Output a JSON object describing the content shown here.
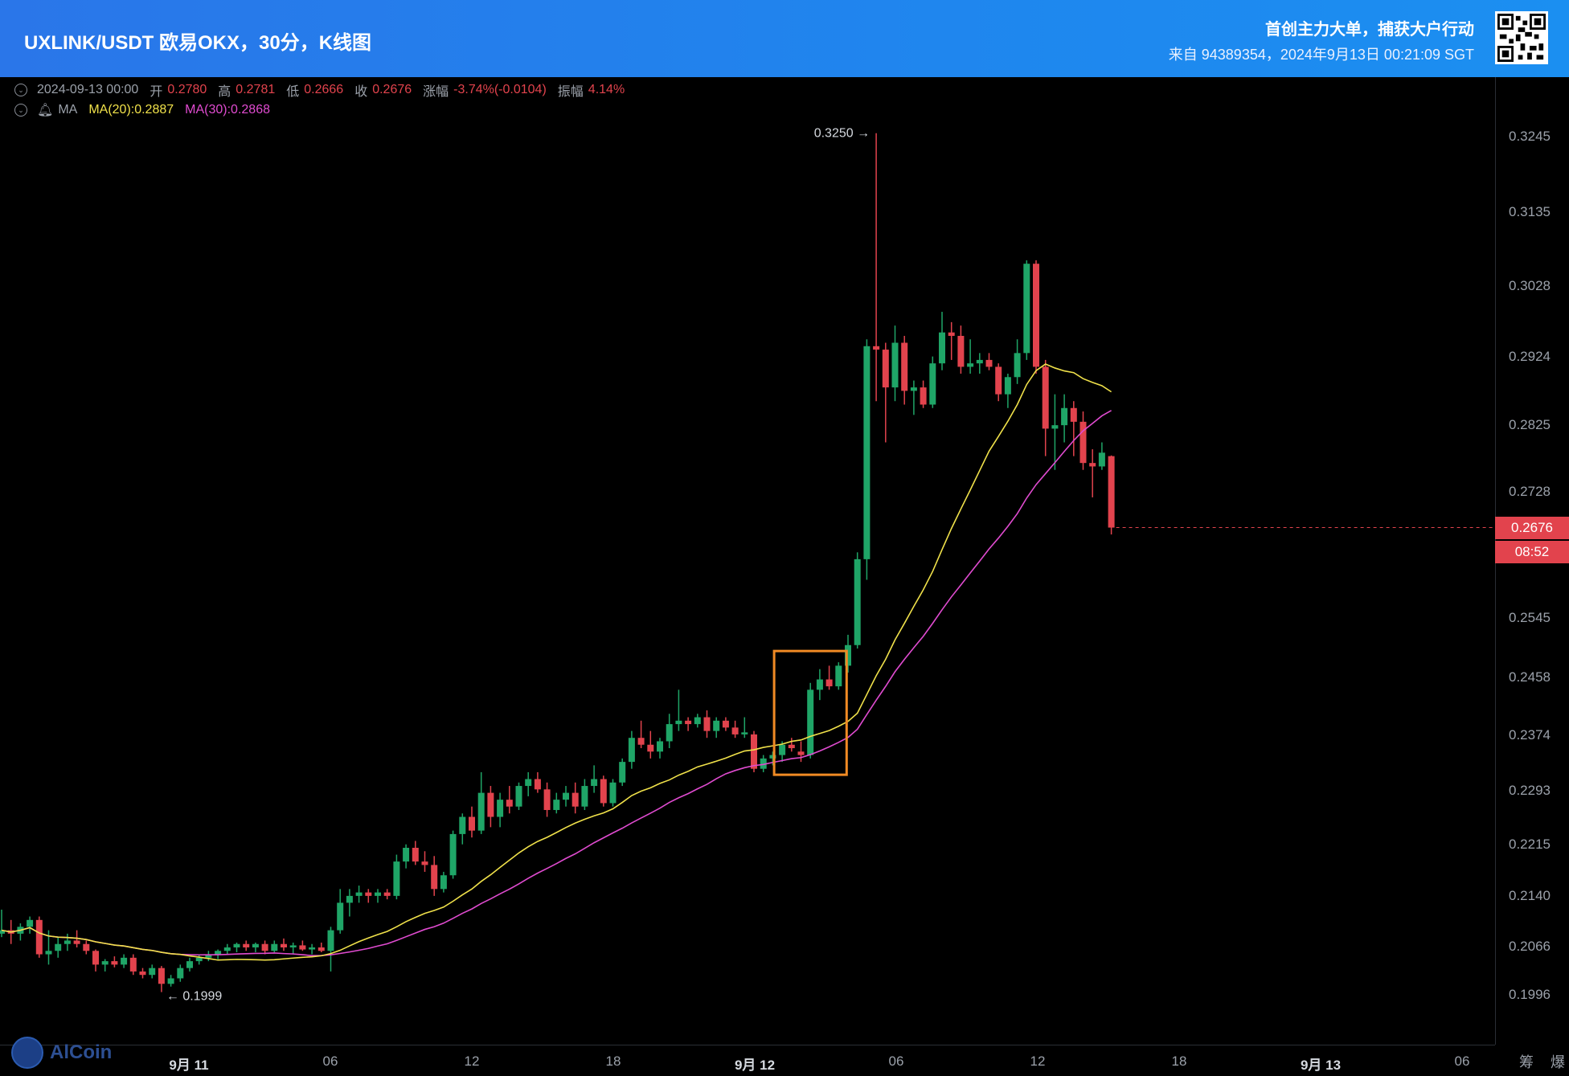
{
  "header": {
    "title": "UXLINK/USDT 欧易OKX，30分，K线图",
    "promo": "首创主力大单，捕获大户行动",
    "source": "来自 94389354，2024年9月13日 00:21:09 SGT"
  },
  "ohlc": {
    "datetime": "2024-09-13 00:00",
    "open_label": "开",
    "open": "0.2780",
    "high_label": "高",
    "high": "0.2781",
    "low_label": "低",
    "low": "0.2666",
    "close_label": "收",
    "close": "0.2676",
    "change_label": "涨幅",
    "change": "-3.74%(-0.0104)",
    "amplitude_label": "振幅",
    "amplitude": "4.14%"
  },
  "ma": {
    "label": "MA",
    "ma20": "MA(20):0.2887",
    "ma30": "MA(30):0.2868"
  },
  "y_axis": {
    "ticks": [
      "0.3245",
      "0.3135",
      "0.3028",
      "0.2924",
      "0.2825",
      "0.2728",
      "0.2545",
      "0.2458",
      "0.2374",
      "0.2293",
      "0.2215",
      "0.2140",
      "0.2066",
      "0.1996"
    ]
  },
  "x_axis": {
    "ticks": [
      {
        "label": "9月 11",
        "bold": true
      },
      {
        "label": "06",
        "bold": false
      },
      {
        "label": "12",
        "bold": false
      },
      {
        "label": "18",
        "bold": false
      },
      {
        "label": "9月 12",
        "bold": true
      },
      {
        "label": "06",
        "bold": false
      },
      {
        "label": "12",
        "bold": false
      },
      {
        "label": "18",
        "bold": false
      },
      {
        "label": "9月 13",
        "bold": true
      },
      {
        "label": "06",
        "bold": false
      }
    ]
  },
  "current_price": "0.2676",
  "countdown": "08:52",
  "annotations": {
    "high_marker": "0.3250 →",
    "low_marker": "← 0.1999"
  },
  "corner_icons": "筹 爆",
  "logo": {
    "text": "AlCoin"
  },
  "colors": {
    "up": "#1fa567",
    "down": "#e2434d",
    "ma20": "#f0e14a",
    "ma30": "#e04bd0",
    "highlight_box": "#f08a24"
  },
  "chart_data": {
    "type": "candlestick",
    "interval": "30分",
    "pair": "UXLINK/USDT",
    "x_span": [
      "9月 11",
      "9月 13"
    ],
    "ylim": [
      0.193,
      0.33
    ],
    "candles": [
      [
        0.2085,
        0.212,
        0.208,
        0.209
      ],
      [
        0.209,
        0.2105,
        0.207,
        0.2085
      ],
      [
        0.2085,
        0.21,
        0.2075,
        0.2095
      ],
      [
        0.2095,
        0.211,
        0.2085,
        0.2105
      ],
      [
        0.2105,
        0.211,
        0.205,
        0.2055
      ],
      [
        0.2055,
        0.209,
        0.204,
        0.206
      ],
      [
        0.206,
        0.208,
        0.205,
        0.207
      ],
      [
        0.207,
        0.2085,
        0.206,
        0.2075
      ],
      [
        0.2075,
        0.209,
        0.2065,
        0.207
      ],
      [
        0.207,
        0.2075,
        0.2055,
        0.206
      ],
      [
        0.206,
        0.2062,
        0.203,
        0.204
      ],
      [
        0.204,
        0.2048,
        0.203,
        0.2045
      ],
      [
        0.2045,
        0.2052,
        0.2036,
        0.204
      ],
      [
        0.204,
        0.2055,
        0.2035,
        0.205
      ],
      [
        0.205,
        0.2055,
        0.2025,
        0.203
      ],
      [
        0.203,
        0.2035,
        0.202,
        0.2025
      ],
      [
        0.2025,
        0.204,
        0.202,
        0.2035
      ],
      [
        0.2035,
        0.2038,
        0.2,
        0.2012
      ],
      [
        0.2012,
        0.2025,
        0.2008,
        0.202
      ],
      [
        0.202,
        0.204,
        0.2015,
        0.2035
      ],
      [
        0.2035,
        0.205,
        0.203,
        0.2045
      ],
      [
        0.2045,
        0.2055,
        0.204,
        0.205
      ],
      [
        0.205,
        0.206,
        0.2045,
        0.2055
      ],
      [
        0.2055,
        0.2062,
        0.2048,
        0.206
      ],
      [
        0.206,
        0.207,
        0.2055,
        0.2065
      ],
      [
        0.2065,
        0.2072,
        0.2058,
        0.207
      ],
      [
        0.207,
        0.2075,
        0.206,
        0.2065
      ],
      [
        0.2065,
        0.2072,
        0.2058,
        0.207
      ],
      [
        0.207,
        0.2075,
        0.2055,
        0.206
      ],
      [
        0.206,
        0.2075,
        0.2058,
        0.207
      ],
      [
        0.207,
        0.2078,
        0.206,
        0.2065
      ],
      [
        0.2065,
        0.2072,
        0.2055,
        0.2068
      ],
      [
        0.2068,
        0.2075,
        0.206,
        0.2062
      ],
      [
        0.2062,
        0.207,
        0.2055,
        0.2065
      ],
      [
        0.2065,
        0.2072,
        0.2058,
        0.206
      ],
      [
        0.206,
        0.2095,
        0.203,
        0.209
      ],
      [
        0.209,
        0.215,
        0.2085,
        0.213
      ],
      [
        0.213,
        0.215,
        0.211,
        0.214
      ],
      [
        0.214,
        0.2155,
        0.213,
        0.2145
      ],
      [
        0.2145,
        0.215,
        0.213,
        0.214
      ],
      [
        0.214,
        0.215,
        0.213,
        0.2145
      ],
      [
        0.2145,
        0.215,
        0.2135,
        0.214
      ],
      [
        0.214,
        0.22,
        0.2135,
        0.219
      ],
      [
        0.219,
        0.2215,
        0.218,
        0.221
      ],
      [
        0.221,
        0.222,
        0.2185,
        0.219
      ],
      [
        0.219,
        0.2205,
        0.2175,
        0.2185
      ],
      [
        0.2185,
        0.2198,
        0.214,
        0.215
      ],
      [
        0.215,
        0.2175,
        0.2145,
        0.217
      ],
      [
        0.217,
        0.2235,
        0.2165,
        0.223
      ],
      [
        0.223,
        0.226,
        0.2215,
        0.2255
      ],
      [
        0.2255,
        0.227,
        0.2225,
        0.2235
      ],
      [
        0.2235,
        0.232,
        0.223,
        0.229
      ],
      [
        0.229,
        0.23,
        0.224,
        0.2255
      ],
      [
        0.2255,
        0.229,
        0.224,
        0.228
      ],
      [
        0.228,
        0.23,
        0.226,
        0.227
      ],
      [
        0.227,
        0.2305,
        0.2265,
        0.23
      ],
      [
        0.23,
        0.232,
        0.2285,
        0.231
      ],
      [
        0.231,
        0.232,
        0.229,
        0.2295
      ],
      [
        0.2295,
        0.2305,
        0.2255,
        0.2265
      ],
      [
        0.2265,
        0.229,
        0.226,
        0.228
      ],
      [
        0.228,
        0.23,
        0.227,
        0.229
      ],
      [
        0.229,
        0.2305,
        0.226,
        0.227
      ],
      [
        0.227,
        0.231,
        0.2265,
        0.23
      ],
      [
        0.23,
        0.233,
        0.229,
        0.231
      ],
      [
        0.231,
        0.2315,
        0.227,
        0.2275
      ],
      [
        0.2275,
        0.231,
        0.227,
        0.2305
      ],
      [
        0.2305,
        0.234,
        0.23,
        0.2335
      ],
      [
        0.2335,
        0.238,
        0.2325,
        0.237
      ],
      [
        0.237,
        0.2395,
        0.2355,
        0.236
      ],
      [
        0.236,
        0.238,
        0.234,
        0.235
      ],
      [
        0.235,
        0.237,
        0.234,
        0.2365
      ],
      [
        0.2365,
        0.2405,
        0.2355,
        0.239
      ],
      [
        0.239,
        0.244,
        0.238,
        0.2395
      ],
      [
        0.2395,
        0.24,
        0.238,
        0.239
      ],
      [
        0.239,
        0.2405,
        0.2385,
        0.24
      ],
      [
        0.24,
        0.241,
        0.237,
        0.238
      ],
      [
        0.238,
        0.24,
        0.237,
        0.2395
      ],
      [
        0.2395,
        0.24,
        0.238,
        0.2385
      ],
      [
        0.2385,
        0.2395,
        0.237,
        0.2375
      ],
      [
        0.2375,
        0.24,
        0.237,
        0.2378
      ],
      [
        0.2375,
        0.238,
        0.232,
        0.2325
      ],
      [
        0.2325,
        0.2345,
        0.232,
        0.234
      ],
      [
        0.234,
        0.235,
        0.233,
        0.2345
      ],
      [
        0.2345,
        0.2365,
        0.2335,
        0.236
      ],
      [
        0.236,
        0.237,
        0.235,
        0.2355
      ],
      [
        0.235,
        0.2365,
        0.2335,
        0.2345
      ],
      [
        0.2345,
        0.245,
        0.234,
        0.244
      ],
      [
        0.244,
        0.247,
        0.2425,
        0.2455
      ],
      [
        0.2455,
        0.2475,
        0.244,
        0.2445
      ],
      [
        0.2445,
        0.248,
        0.244,
        0.2475
      ],
      [
        0.2475,
        0.252,
        0.2465,
        0.2505
      ],
      [
        0.2505,
        0.264,
        0.25,
        0.263
      ],
      [
        0.263,
        0.295,
        0.26,
        0.294
      ],
      [
        0.294,
        0.325,
        0.286,
        0.2935
      ],
      [
        0.2935,
        0.2945,
        0.28,
        0.288
      ],
      [
        0.288,
        0.297,
        0.286,
        0.2945
      ],
      [
        0.2945,
        0.2955,
        0.2855,
        0.2875
      ],
      [
        0.2875,
        0.289,
        0.284,
        0.288
      ],
      [
        0.288,
        0.289,
        0.285,
        0.2855
      ],
      [
        0.2855,
        0.2925,
        0.285,
        0.2915
      ],
      [
        0.2915,
        0.299,
        0.2905,
        0.296
      ],
      [
        0.296,
        0.2975,
        0.292,
        0.2955
      ],
      [
        0.2955,
        0.297,
        0.29,
        0.291
      ],
      [
        0.291,
        0.295,
        0.29,
        0.2915
      ],
      [
        0.2915,
        0.293,
        0.29,
        0.292
      ],
      [
        0.292,
        0.293,
        0.2905,
        0.291
      ],
      [
        0.291,
        0.2915,
        0.286,
        0.287
      ],
      [
        0.287,
        0.29,
        0.285,
        0.2895
      ],
      [
        0.2895,
        0.295,
        0.2885,
        0.293
      ],
      [
        0.293,
        0.3065,
        0.292,
        0.306
      ],
      [
        0.306,
        0.3065,
        0.29,
        0.291
      ],
      [
        0.291,
        0.292,
        0.278,
        0.282
      ],
      [
        0.282,
        0.287,
        0.276,
        0.2825
      ],
      [
        0.2825,
        0.287,
        0.28,
        0.285
      ],
      [
        0.285,
        0.286,
        0.278,
        0.283
      ],
      [
        0.283,
        0.2845,
        0.276,
        0.277
      ],
      [
        0.277,
        0.279,
        0.272,
        0.2765
      ],
      [
        0.2765,
        0.28,
        0.276,
        0.2785
      ],
      [
        0.278,
        0.2781,
        0.2666,
        0.2676
      ]
    ],
    "series": [
      {
        "name": "MA(20)",
        "last": 0.2887
      },
      {
        "name": "MA(30)",
        "last": 0.2868
      }
    ],
    "highlight_range": [
      83,
      89
    ],
    "high": 0.325,
    "low": 0.1999
  }
}
